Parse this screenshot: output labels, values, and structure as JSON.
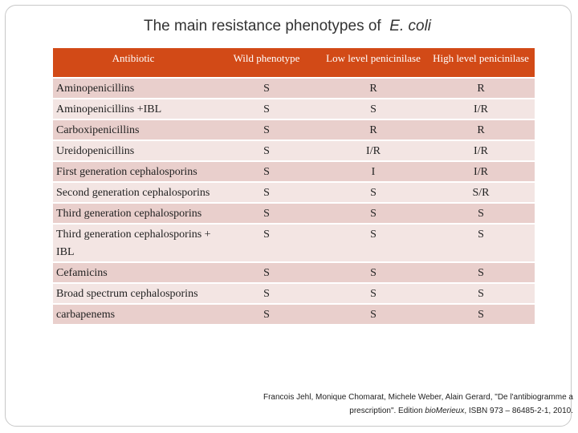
{
  "title": {
    "main": "The main resistance phenotypes of",
    "organism": "E. coli"
  },
  "table": {
    "headers": [
      "Antibiotic",
      "Wild phenotype",
      "Low level penicinilase",
      "High level penicinilase"
    ],
    "rows": [
      {
        "name": "Aminopenicillins",
        "wild": "S",
        "low": "R",
        "high": "R"
      },
      {
        "name": "Aminopenicillins +IBL",
        "wild": "S",
        "low": "S",
        "high": "I/R"
      },
      {
        "name": "Carboxipenicillins",
        "wild": "S",
        "low": "R",
        "high": "R"
      },
      {
        "name": "Ureidopenicillins",
        "wild": "S",
        "low": "I/R",
        "high": "I/R"
      },
      {
        "name": "First generation cephalosporins",
        "wild": "S",
        "low": "I",
        "high": "I/R"
      },
      {
        "name": "Second generation cephalosporins",
        "wild": "S",
        "low": "S",
        "high": "S/R"
      },
      {
        "name": "Third generation cephalosporins",
        "wild": "S",
        "low": "S",
        "high": "S"
      },
      {
        "name": "Third generation cephalosporins + IBL",
        "wild": "S",
        "low": "S",
        "high": "S"
      },
      {
        "name": "Cefamicins",
        "wild": "S",
        "low": "S",
        "high": "S"
      },
      {
        "name": "Broad spectrum cephalosporins",
        "wild": "S",
        "low": "S",
        "high": "S"
      },
      {
        "name": "carbapenems",
        "wild": "S",
        "low": "S",
        "high": "S"
      }
    ]
  },
  "citation": {
    "line1": "Francois Jehl, Monique Chomarat, Michele Weber, Alain Gerard, \"De l'antibiogramme a",
    "line2_pre": "prescription\". Edition ",
    "line2_publisher": "bioMerieux",
    "line2_post": ", ISBN 973 – 86485-2-1, 2010."
  },
  "colors": {
    "header_bg": "#d24a17",
    "row_dark": "#e9cfcc",
    "row_light": "#f3e5e3"
  }
}
